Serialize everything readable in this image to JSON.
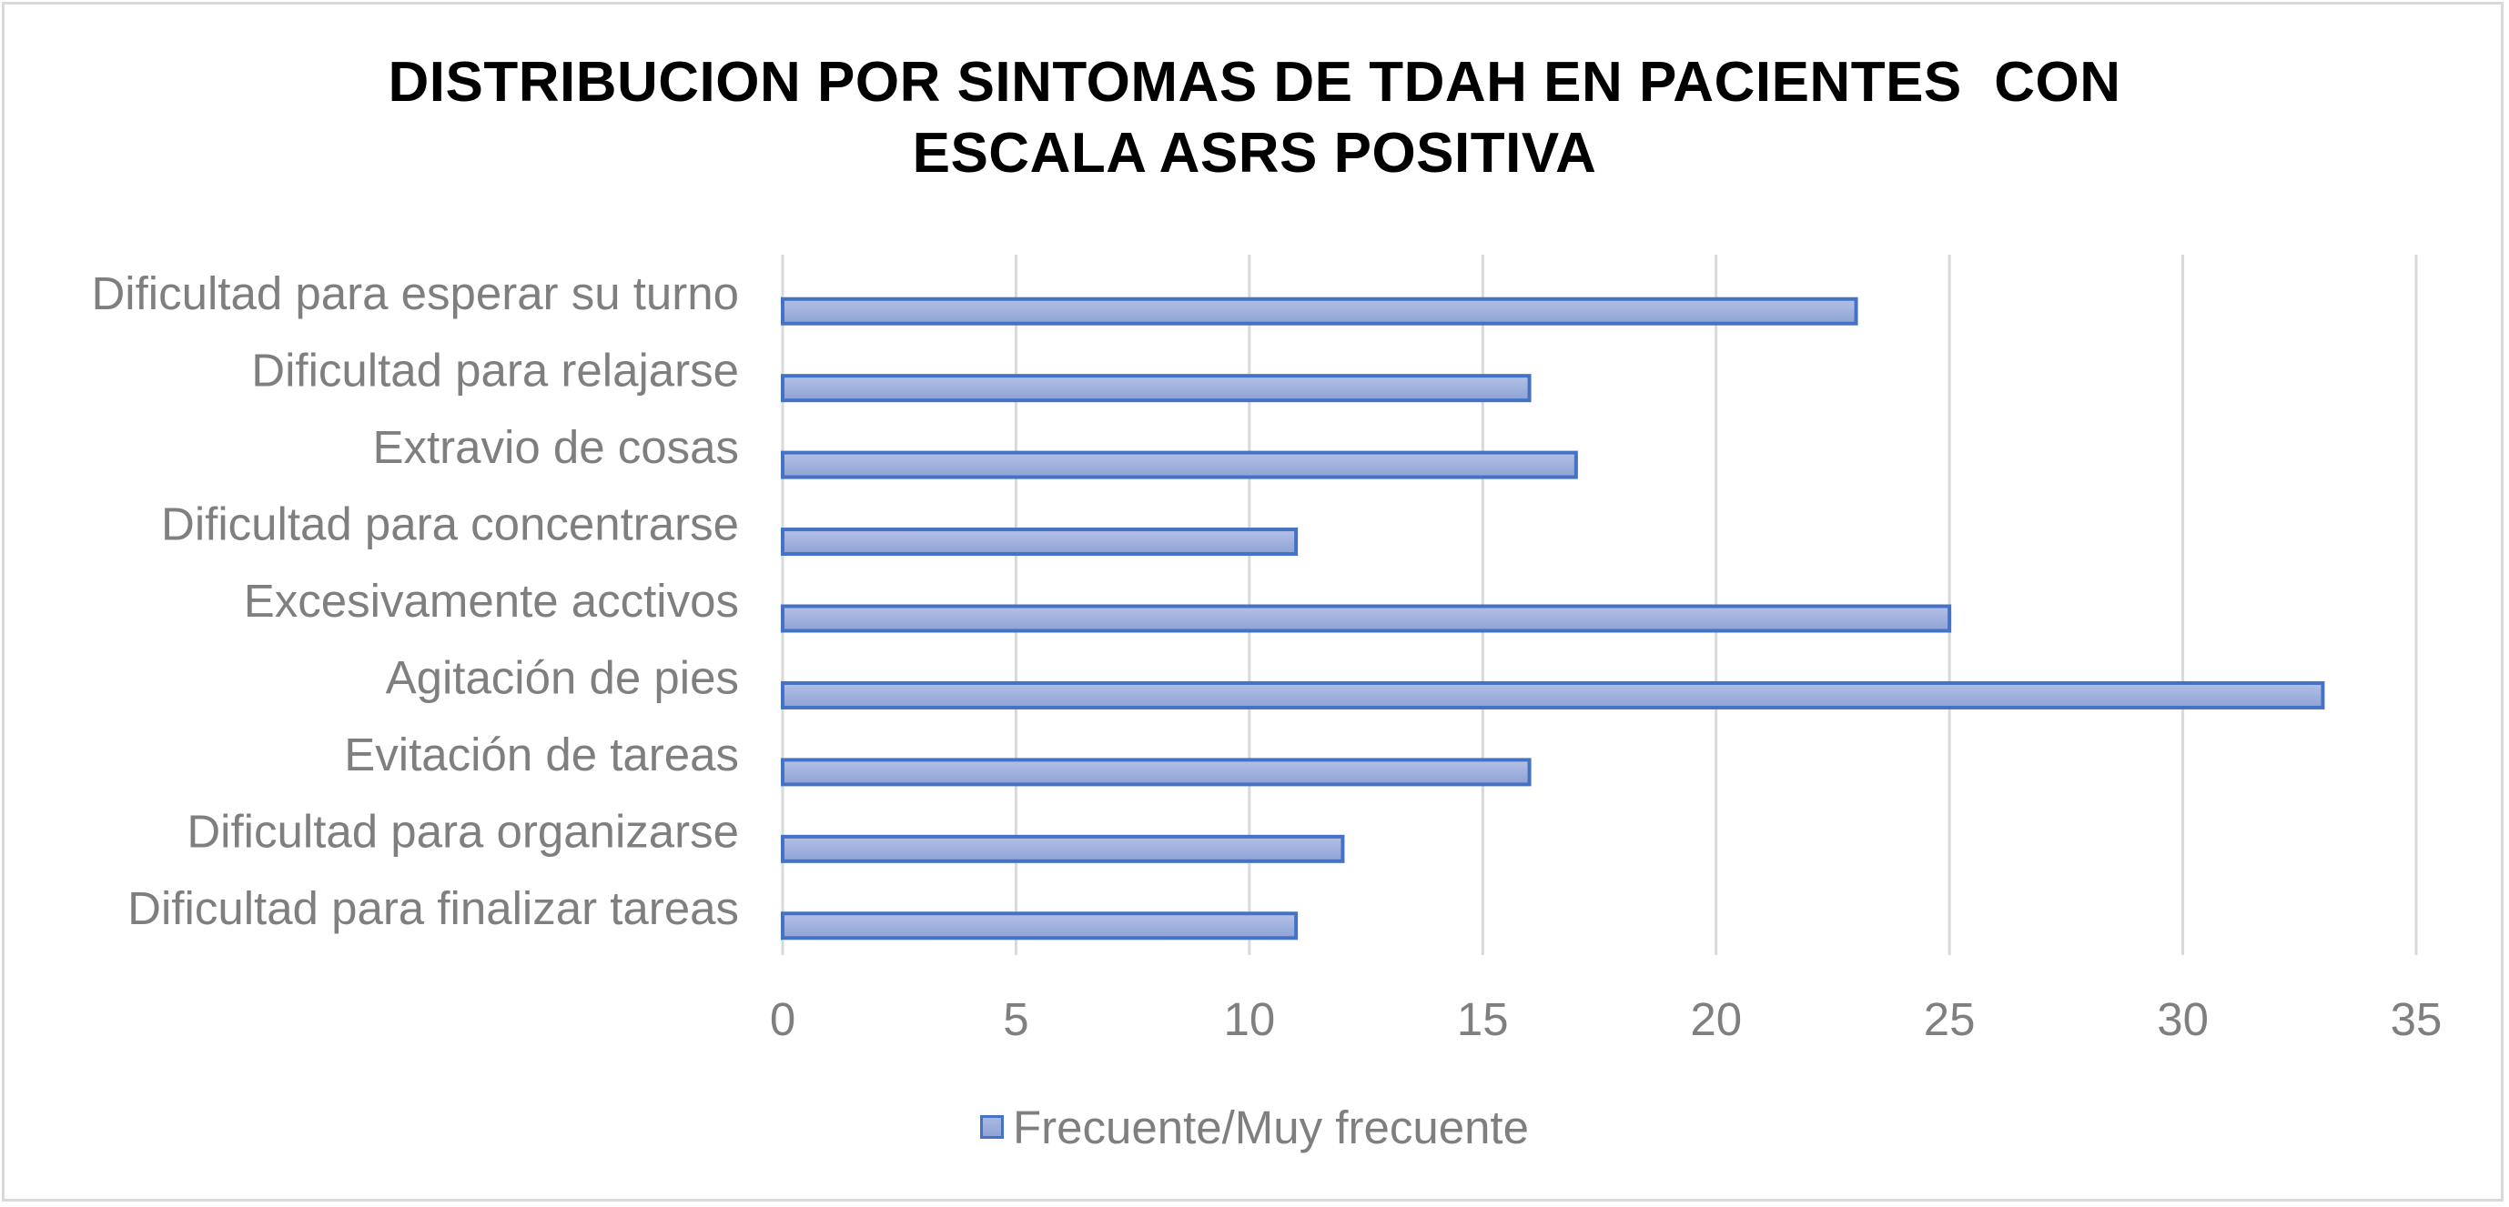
{
  "chart_data": {
    "type": "bar",
    "orientation": "horizontal",
    "title_lines": [
      "DISTRIBUCION POR SINTOMAS DE TDAH EN PACIENTES  CON",
      "ESCALA ASRS POSITIVA"
    ],
    "categories": [
      "Dificultad para esperar su turno",
      "Dificultad para relajarse",
      "Extravio de cosas",
      "Dificultad para concentrarse",
      "Excesivamente acctivos",
      "Agitación de pies",
      "Evitación de tareas",
      "Dificultad para organizarse",
      "Dificultad para finalizar tareas"
    ],
    "series": [
      {
        "name": "Frecuente/Muy frecuente",
        "values": [
          23,
          16,
          17,
          11,
          25,
          33,
          16,
          12,
          11
        ],
        "color": "#4472c4"
      }
    ],
    "xlim": [
      0,
      35
    ],
    "xticks": [
      "0",
      "5",
      "10",
      "15",
      "20",
      "25",
      "30",
      "35"
    ],
    "grid": true,
    "legend": "bottom"
  }
}
